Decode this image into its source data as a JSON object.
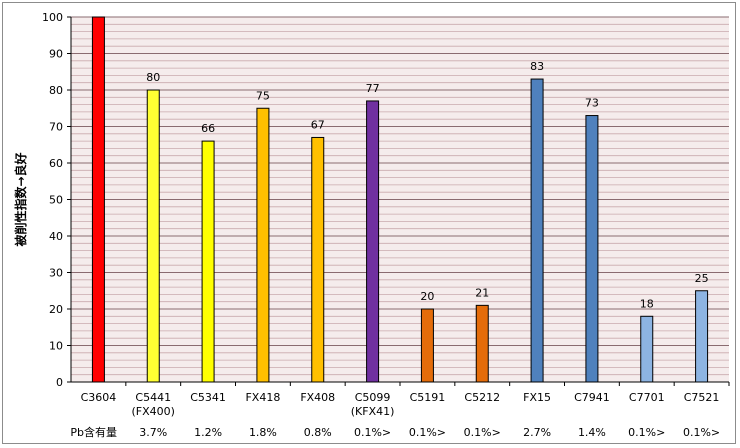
{
  "chart_data": {
    "type": "bar",
    "ylabel": "被削性指数→良好",
    "ylim": [
      0,
      100
    ],
    "yticks": [
      0,
      10,
      20,
      30,
      40,
      50,
      60,
      70,
      80,
      90,
      100
    ],
    "grid": true,
    "categories": [
      [
        "C3604"
      ],
      [
        "C5441",
        "(FX400)"
      ],
      [
        "C5341"
      ],
      [
        "FX418"
      ],
      [
        "FX408"
      ],
      [
        "C5099",
        "(KFX41)"
      ],
      [
        "C5191"
      ],
      [
        "C5212"
      ],
      [
        "FX15"
      ],
      [
        "C7941"
      ],
      [
        "C7701"
      ],
      [
        "C7521"
      ]
    ],
    "values": [
      100,
      80,
      66,
      75,
      67,
      77,
      20,
      21,
      83,
      73,
      18,
      25
    ],
    "data_labels": [
      "",
      "80",
      "66",
      "75",
      "67",
      "77",
      "20",
      "21",
      "83",
      "73",
      "18",
      "25"
    ],
    "colors": [
      "#ff0000",
      "#ffff33",
      "#ffff00",
      "#ffc000",
      "#ffc000",
      "#7030a0",
      "#e46c0a",
      "#e46c0a",
      "#4f81bd",
      "#4f81bd",
      "#8db4e2",
      "#8db4e2"
    ],
    "pb_row_label": "Pb含有量",
    "pb_values": [
      "",
      "3.7%",
      "1.2%",
      "1.8%",
      "0.8%",
      "0.1%>",
      "0.1%>",
      "0.1%>",
      "2.7%",
      "1.4%",
      "0.1%>",
      "0.1%>"
    ]
  }
}
